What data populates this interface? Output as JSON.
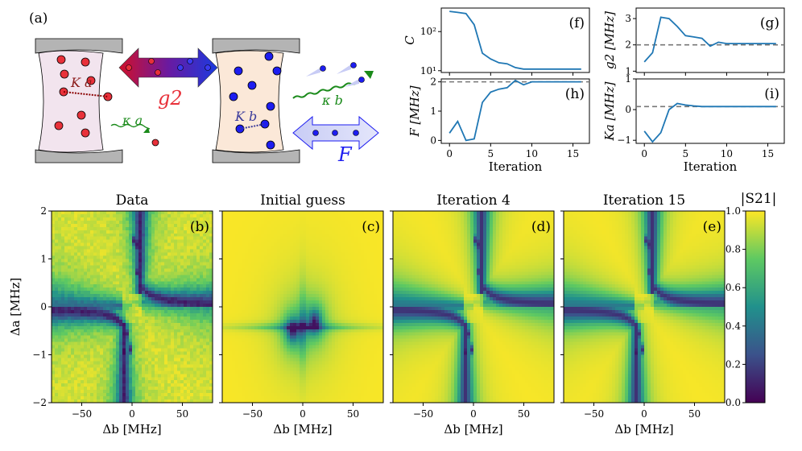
{
  "figure": {
    "panel_a": {
      "label": "(a)",
      "coupling_g2": "g2",
      "pump_F": "F",
      "label_Ka": "K a",
      "label_Kb": "K b",
      "label_kappa_a": "κ a",
      "label_kappa_b": "κ b"
    },
    "colorbar": {
      "label": "|S21|",
      "ticks": [
        "0.0",
        "0.2",
        "0.4",
        "0.6",
        "0.8",
        "1.0"
      ]
    },
    "colors": {
      "line": "#1f77b4",
      "dash": "#777777",
      "red": "#e8313a",
      "blue": "#1d1df0",
      "green": "#1a8a1a"
    }
  },
  "chart_data": [
    {
      "id": "f",
      "type": "line",
      "panel_label": "(f)",
      "ylabel": "C",
      "yscale": "log",
      "ylim": [
        9,
        400
      ],
      "yticks": [
        "10¹",
        "10²"
      ],
      "xlim": [
        -1,
        17
      ],
      "x": [
        0,
        1,
        2,
        3,
        4,
        5,
        6,
        7,
        8,
        9,
        10,
        11,
        12,
        13,
        14,
        15,
        16
      ],
      "values": [
        330,
        310,
        290,
        150,
        28,
        20,
        16,
        15,
        12,
        11,
        11,
        11,
        11,
        11,
        11,
        11,
        11
      ]
    },
    {
      "id": "g",
      "type": "line",
      "panel_label": "(g)",
      "ylabel": "g2 [MHz]",
      "ylim": [
        0.95,
        3.4
      ],
      "yticks": [
        "1",
        "2",
        "3"
      ],
      "xlim": [
        -1,
        17
      ],
      "reference_line": 2.0,
      "x": [
        0,
        1,
        2,
        3,
        4,
        5,
        6,
        7,
        8,
        9,
        10,
        11,
        12,
        13,
        14,
        15,
        16
      ],
      "values": [
        1.35,
        1.7,
        3.05,
        3.0,
        2.7,
        2.35,
        2.3,
        2.25,
        1.95,
        2.1,
        2.05,
        2.05,
        2.05,
        2.05,
        2.05,
        2.05,
        2.05
      ]
    },
    {
      "id": "h",
      "type": "line",
      "panel_label": "(h)",
      "ylabel": "F [MHz]",
      "xlabel": "Iteration",
      "ylim": [
        -0.1,
        2.1
      ],
      "yticks": [
        "0",
        "1",
        "2"
      ],
      "xticks": [
        "0",
        "5",
        "10",
        "15"
      ],
      "xlim": [
        -1,
        17
      ],
      "reference_line": 2.0,
      "x": [
        0,
        1,
        2,
        3,
        4,
        5,
        6,
        7,
        8,
        9,
        10,
        11,
        12,
        13,
        14,
        15,
        16
      ],
      "values": [
        0.25,
        0.65,
        0.0,
        0.05,
        1.3,
        1.65,
        1.75,
        1.8,
        2.05,
        1.9,
        2.0,
        2.0,
        2.0,
        2.0,
        2.0,
        2.0,
        2.0
      ]
    },
    {
      "id": "i",
      "type": "line",
      "panel_label": "(i)",
      "ylabel": "Ka [MHz]",
      "xlabel": "Iteration",
      "ylim": [
        -1.1,
        1.0
      ],
      "yticks": [
        "−1",
        "0",
        "1"
      ],
      "xticks": [
        "0",
        "5",
        "10",
        "15"
      ],
      "xlim": [
        -1,
        17
      ],
      "reference_line": 0.1,
      "x": [
        0,
        1,
        2,
        3,
        4,
        5,
        6,
        7,
        8,
        9,
        10,
        11,
        12,
        13,
        14,
        15,
        16
      ],
      "values": [
        -0.7,
        -1.05,
        -0.75,
        0.0,
        0.2,
        0.15,
        0.12,
        0.1,
        0.1,
        0.1,
        0.1,
        0.1,
        0.1,
        0.1,
        0.1,
        0.1,
        0.1
      ]
    },
    {
      "id": "b",
      "type": "heatmap",
      "title": "Data",
      "panel_label": "(b)",
      "xlabel": "Δb [MHz]",
      "ylabel": "Δa [MHz]",
      "xlim": [
        -80,
        80
      ],
      "ylim": [
        -2,
        2
      ],
      "xticks": [
        "−50",
        "0",
        "50"
      ],
      "yticks": [
        "−2",
        "−1",
        "0",
        "1",
        "2"
      ],
      "style": "data"
    },
    {
      "id": "c",
      "type": "heatmap",
      "title": "Initial guess",
      "panel_label": "(c)",
      "xlabel": "Δb [MHz]",
      "xlim": [
        -80,
        80
      ],
      "ylim": [
        -2,
        2
      ],
      "xticks": [
        "−50",
        "0",
        "50"
      ],
      "style": "initial"
    },
    {
      "id": "d",
      "type": "heatmap",
      "title": "Iteration 4",
      "panel_label": "(d)",
      "xlabel": "Δb [MHz]",
      "xlim": [
        -80,
        80
      ],
      "ylim": [
        -2,
        2
      ],
      "xticks": [
        "−50",
        "0",
        "50"
      ],
      "style": "iter4"
    },
    {
      "id": "e",
      "type": "heatmap",
      "title": "Iteration 15",
      "panel_label": "(e)",
      "xlabel": "Δb [MHz]",
      "xlim": [
        -80,
        80
      ],
      "ylim": [
        -2,
        2
      ],
      "xticks": [
        "−50",
        "0",
        "50"
      ],
      "style": "iter15"
    }
  ]
}
